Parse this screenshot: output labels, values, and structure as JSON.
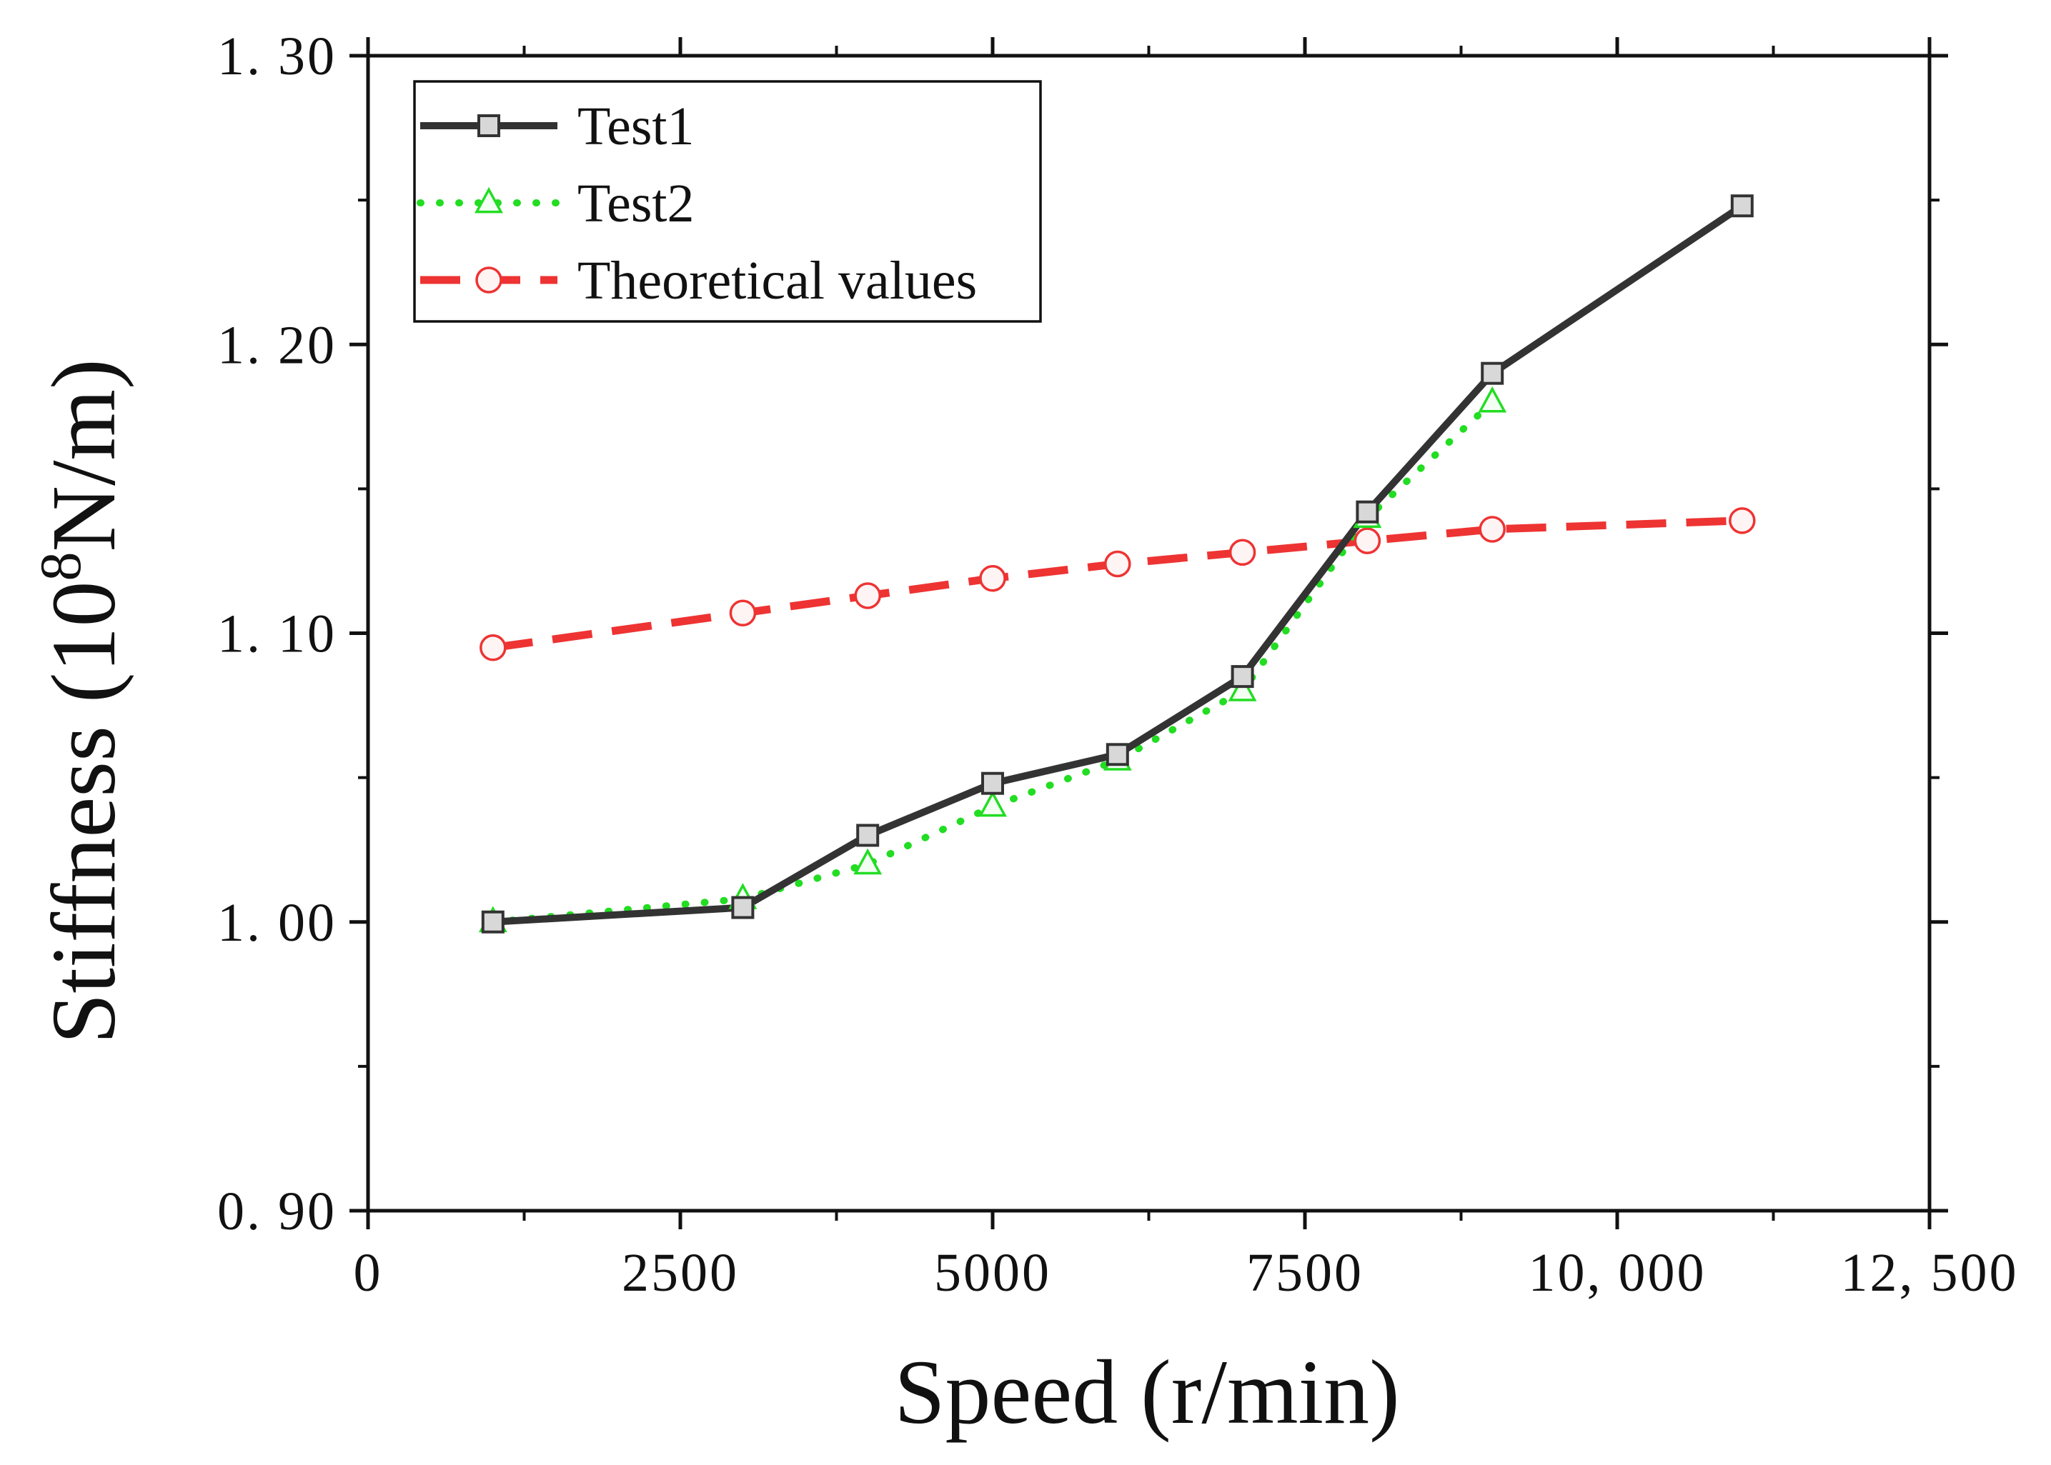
{
  "chart_data": {
    "type": "line",
    "title": "",
    "xlabel": "Speed (r/min)",
    "ylabel": {
      "prefix": "Stiffness (10",
      "superscript": "8",
      "suffix": "N/m)"
    },
    "xlim": [
      0,
      12500
    ],
    "ylim": [
      0.9,
      1.3
    ],
    "x_ticks": [
      0,
      2500,
      5000,
      7500,
      10000,
      12500
    ],
    "x_tick_labels": [
      "0",
      "2500",
      "5000",
      "7500",
      "10, 000",
      "12, 500"
    ],
    "y_ticks": [
      0.9,
      1.0,
      1.1,
      1.2,
      1.3
    ],
    "y_tick_labels": [
      "0. 90",
      "1. 00",
      "1. 10",
      "1. 20",
      "1. 30"
    ],
    "grid": false,
    "legend_position": "top-left",
    "series": [
      {
        "name": "Test1",
        "color": "#333333",
        "line_style": "solid",
        "marker": "square",
        "x": [
          1000,
          3000,
          4000,
          5000,
          6000,
          7000,
          8000,
          9000,
          11000
        ],
        "values": [
          1.0,
          1.005,
          1.03,
          1.048,
          1.058,
          1.085,
          1.142,
          1.19,
          1.248
        ]
      },
      {
        "name": "Test2",
        "color": "#22dd22",
        "line_style": "dotted",
        "marker": "triangle",
        "x": [
          1000,
          3000,
          4000,
          5000,
          6000,
          7000,
          8000,
          9000
        ],
        "values": [
          1.0,
          1.008,
          1.02,
          1.04,
          1.056,
          1.08,
          1.14,
          1.18
        ]
      },
      {
        "name": "Theoretical values",
        "color": "#ee3333",
        "line_style": "dashed",
        "marker": "circle",
        "x": [
          1000,
          3000,
          4000,
          5000,
          6000,
          7000,
          8000,
          9000,
          11000
        ],
        "values": [
          1.095,
          1.107,
          1.113,
          1.119,
          1.124,
          1.128,
          1.132,
          1.136,
          1.139
        ]
      }
    ]
  }
}
